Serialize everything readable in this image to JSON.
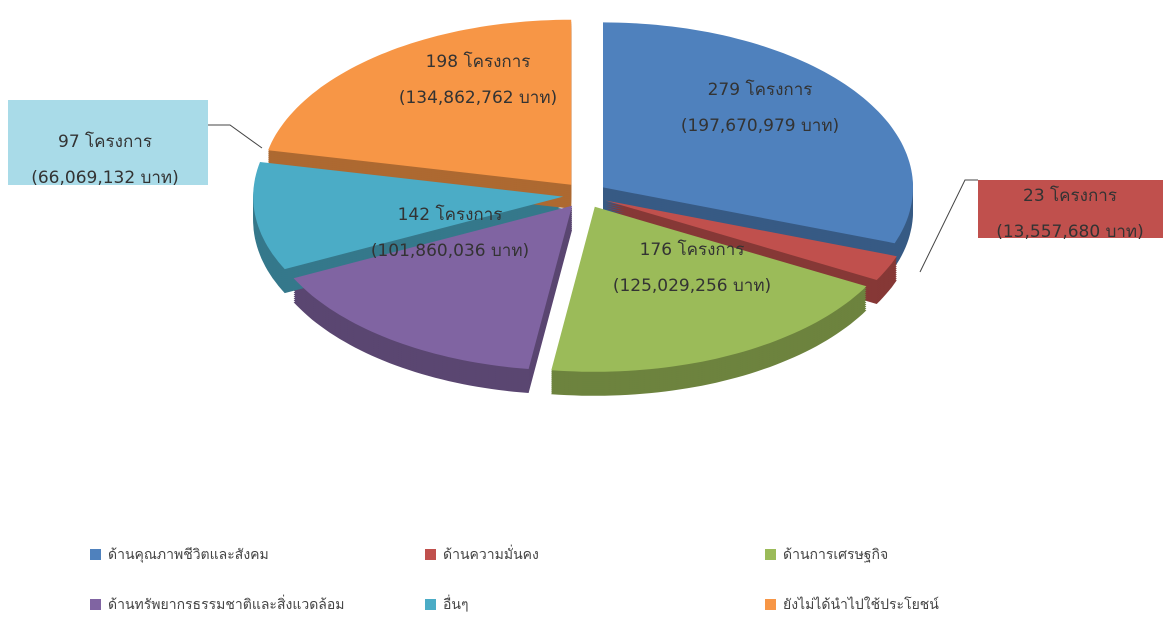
{
  "chart_data": {
    "type": "pie",
    "categories": [
      "ด้านคุณภาพชีวิตและสังคม",
      "ด้านความมั่นคง",
      "ด้านการเศรษฐกิจ",
      "ด้านทรัพยากรธรรมชาติและสิ่งแวดล้อม",
      "อื่นๆ",
      "ยังไม่ได้นำไปใช้ประโยชน์"
    ],
    "values": [
      279,
      23,
      176,
      142,
      97,
      198
    ],
    "value_labels": [
      "279 โครงการ",
      "23 โครงการ",
      "176 โครงการ",
      "142 โครงการ",
      "97 โครงการ",
      "198 โครงการ"
    ],
    "budgets": [
      197670979,
      13557680,
      125029256,
      101860036,
      66069132,
      134862762
    ],
    "budget_labels": [
      "(197,670,979 บาท)",
      "(13,557,680 บาท)",
      "(125,029,256 บาท)",
      "(101,860,036 บาท)",
      "(66,069,132 บาท)",
      "(134,862,762 บาท)"
    ],
    "colors": [
      "#4f81bd",
      "#c0504d",
      "#9bbb59",
      "#8064a2",
      "#4bacc6",
      "#f79646"
    ]
  }
}
